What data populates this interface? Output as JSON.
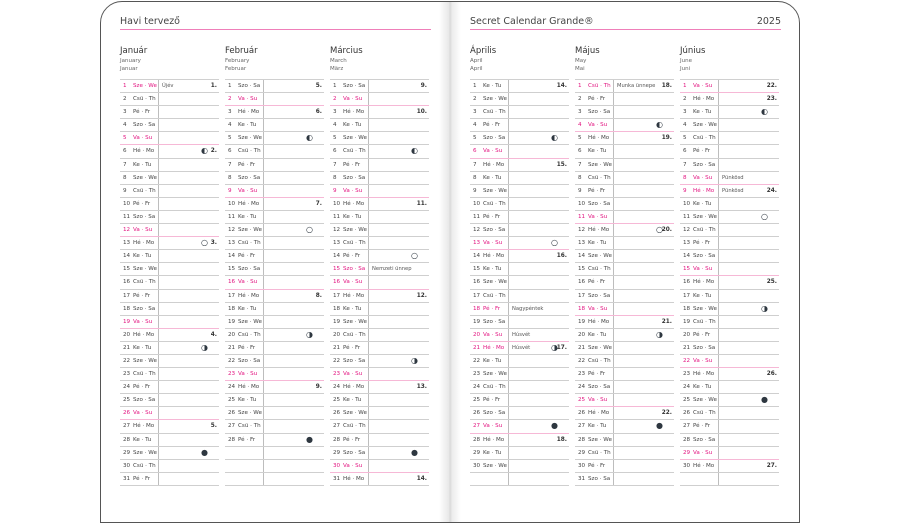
{
  "left_header": "Havi tervező",
  "right_header": "Secret Calendar Grande®",
  "year": "2025",
  "colors": {
    "accent": "#e2127f",
    "rule": "#ef7fb9"
  },
  "moon_glyphs": {
    "first-quarter": "◐",
    "full": "○",
    "last-quarter": "◑",
    "new": "●"
  },
  "months": [
    {
      "name": "Január",
      "en": "January",
      "de": "Januar",
      "days": [
        [
          "1",
          "Sze · We"
        ],
        [
          "2",
          "Csü · Th"
        ],
        [
          "3",
          "Pé · Fr"
        ],
        [
          "4",
          "Szo · Sa"
        ],
        [
          "5",
          "Va · Su"
        ],
        [
          "6",
          "Hé · Mo"
        ],
        [
          "7",
          "Ke · Tu"
        ],
        [
          "8",
          "Sze · We"
        ],
        [
          "9",
          "Csü · Th"
        ],
        [
          "10",
          "Pé · Fr"
        ],
        [
          "11",
          "Szo · Sa"
        ],
        [
          "12",
          "Va · Su"
        ],
        [
          "13",
          "Hé · Mo"
        ],
        [
          "14",
          "Ke · Tu"
        ],
        [
          "15",
          "Sze · We"
        ],
        [
          "16",
          "Csü · Th"
        ],
        [
          "17",
          "Pé · Fr"
        ],
        [
          "18",
          "Szo · Sa"
        ],
        [
          "19",
          "Va · Su"
        ],
        [
          "20",
          "Hé · Mo"
        ],
        [
          "21",
          "Ke · Tu"
        ],
        [
          "22",
          "Sze · We"
        ],
        [
          "23",
          "Csü · Th"
        ],
        [
          "24",
          "Pé · Fr"
        ],
        [
          "25",
          "Szo · Sa"
        ],
        [
          "26",
          "Va · Su"
        ],
        [
          "27",
          "Hé · Mo"
        ],
        [
          "28",
          "Ke · Tu"
        ],
        [
          "29",
          "Sze · We"
        ],
        [
          "30",
          "Csü · Th"
        ],
        [
          "31",
          "Pé · Fr"
        ]
      ],
      "red": [
        "1",
        "5",
        "12",
        "19",
        "26"
      ],
      "notes": {
        "1": "Újév"
      },
      "weeks": {
        "1": "1.",
        "6": "2.",
        "13": "3.",
        "20": "4.",
        "27": "5."
      },
      "moons": {
        "6": "first-quarter",
        "13": "full",
        "21": "last-quarter",
        "29": "new"
      }
    },
    {
      "name": "Február",
      "en": "February",
      "de": "Februar",
      "days": [
        [
          "1",
          "Szo · Sa"
        ],
        [
          "2",
          "Va · Su"
        ],
        [
          "3",
          "Hé · Mo"
        ],
        [
          "4",
          "Ke · Tu"
        ],
        [
          "5",
          "Sze · We"
        ],
        [
          "6",
          "Csü · Th"
        ],
        [
          "7",
          "Pé · Fr"
        ],
        [
          "8",
          "Szo · Sa"
        ],
        [
          "9",
          "Va · Su"
        ],
        [
          "10",
          "Hé · Mo"
        ],
        [
          "11",
          "Ke · Tu"
        ],
        [
          "12",
          "Sze · We"
        ],
        [
          "13",
          "Csü · Th"
        ],
        [
          "14",
          "Pé · Fr"
        ],
        [
          "15",
          "Szo · Sa"
        ],
        [
          "16",
          "Va · Su"
        ],
        [
          "17",
          "Hé · Mo"
        ],
        [
          "18",
          "Ke · Tu"
        ],
        [
          "19",
          "Sze · We"
        ],
        [
          "20",
          "Csü · Th"
        ],
        [
          "21",
          "Pé · Fr"
        ],
        [
          "22",
          "Szo · Sa"
        ],
        [
          "23",
          "Va · Su"
        ],
        [
          "24",
          "Hé · Mo"
        ],
        [
          "25",
          "Ke · Tu"
        ],
        [
          "26",
          "Sze · We"
        ],
        [
          "27",
          "Csü · Th"
        ],
        [
          "28",
          "Pé · Fr"
        ]
      ],
      "red": [
        "2",
        "9",
        "16",
        "23"
      ],
      "notes": {},
      "weeks": {
        "1": "5.",
        "3": "6.",
        "10": "7.",
        "17": "8.",
        "24": "9."
      },
      "moons": {
        "5": "first-quarter",
        "12": "full",
        "20": "last-quarter",
        "28": "new"
      }
    },
    {
      "name": "Március",
      "en": "March",
      "de": "März",
      "days": [
        [
          "1",
          "Szo · Sa"
        ],
        [
          "2",
          "Va · Su"
        ],
        [
          "3",
          "Hé · Mo"
        ],
        [
          "4",
          "Ke · Tu"
        ],
        [
          "5",
          "Sze · We"
        ],
        [
          "6",
          "Csü · Th"
        ],
        [
          "7",
          "Pé · Fr"
        ],
        [
          "8",
          "Szo · Sa"
        ],
        [
          "9",
          "Va · Su"
        ],
        [
          "10",
          "Hé · Mo"
        ],
        [
          "11",
          "Ke · Tu"
        ],
        [
          "12",
          "Sze · We"
        ],
        [
          "13",
          "Csü · Th"
        ],
        [
          "14",
          "Pé · Fr"
        ],
        [
          "15",
          "Szo · Sa"
        ],
        [
          "16",
          "Va · Su"
        ],
        [
          "17",
          "Hé · Mo"
        ],
        [
          "18",
          "Ke · Tu"
        ],
        [
          "19",
          "Sze · We"
        ],
        [
          "20",
          "Csü · Th"
        ],
        [
          "21",
          "Pé · Fr"
        ],
        [
          "22",
          "Szo · Sa"
        ],
        [
          "23",
          "Va · Su"
        ],
        [
          "24",
          "Hé · Mo"
        ],
        [
          "25",
          "Ke · Tu"
        ],
        [
          "26",
          "Sze · We"
        ],
        [
          "27",
          "Csü · Th"
        ],
        [
          "28",
          "Pé · Fr"
        ],
        [
          "29",
          "Szo · Sa"
        ],
        [
          "30",
          "Va · Su"
        ],
        [
          "31",
          "Hé · Mo"
        ]
      ],
      "red": [
        "2",
        "9",
        "15",
        "16",
        "23",
        "30"
      ],
      "notes": {
        "15": "Nemzeti ünnep"
      },
      "weeks": {
        "1": "9.",
        "3": "10.",
        "10": "11.",
        "17": "12.",
        "24": "13.",
        "31": "14."
      },
      "moons": {
        "6": "first-quarter",
        "14": "full",
        "22": "last-quarter",
        "29": "new"
      }
    },
    {
      "name": "Április",
      "en": "April",
      "de": "April",
      "days": [
        [
          "1",
          "Ke · Tu"
        ],
        [
          "2",
          "Sze · We"
        ],
        [
          "3",
          "Csü · Th"
        ],
        [
          "4",
          "Pé · Fr"
        ],
        [
          "5",
          "Szo · Sa"
        ],
        [
          "6",
          "Va · Su"
        ],
        [
          "7",
          "Hé · Mo"
        ],
        [
          "8",
          "Ke · Tu"
        ],
        [
          "9",
          "Sze · We"
        ],
        [
          "10",
          "Csü · Th"
        ],
        [
          "11",
          "Pé · Fr"
        ],
        [
          "12",
          "Szo · Sa"
        ],
        [
          "13",
          "Va · Su"
        ],
        [
          "14",
          "Hé · Mo"
        ],
        [
          "15",
          "Ke · Tu"
        ],
        [
          "16",
          "Sze · We"
        ],
        [
          "17",
          "Csü · Th"
        ],
        [
          "18",
          "Pé · Fr"
        ],
        [
          "19",
          "Szo · Sa"
        ],
        [
          "20",
          "Va · Su"
        ],
        [
          "21",
          "Hé · Mo"
        ],
        [
          "22",
          "Ke · Tu"
        ],
        [
          "23",
          "Sze · We"
        ],
        [
          "24",
          "Csü · Th"
        ],
        [
          "25",
          "Pé · Fr"
        ],
        [
          "26",
          "Szo · Sa"
        ],
        [
          "27",
          "Va · Su"
        ],
        [
          "28",
          "Hé · Mo"
        ],
        [
          "29",
          "Ke · Tu"
        ],
        [
          "30",
          "Sze · We"
        ]
      ],
      "red": [
        "6",
        "13",
        "18",
        "20",
        "21",
        "27"
      ],
      "notes": {
        "18": "Nagypéntek",
        "20": "Húsvét",
        "21": "Húsvét"
      },
      "weeks": {
        "1": "14.",
        "7": "15.",
        "14": "16.",
        "21": "17.",
        "28": "18."
      },
      "moons": {
        "5": "first-quarter",
        "13": "full",
        "21": "last-quarter",
        "27": "new"
      }
    },
    {
      "name": "Május",
      "en": "May",
      "de": "Mai",
      "days": [
        [
          "1",
          "Csü · Th"
        ],
        [
          "2",
          "Pé · Fr"
        ],
        [
          "3",
          "Szo · Sa"
        ],
        [
          "4",
          "Va · Su"
        ],
        [
          "5",
          "Hé · Mo"
        ],
        [
          "6",
          "Ke · Tu"
        ],
        [
          "7",
          "Sze · We"
        ],
        [
          "8",
          "Csü · Th"
        ],
        [
          "9",
          "Pé · Fr"
        ],
        [
          "10",
          "Szo · Sa"
        ],
        [
          "11",
          "Va · Su"
        ],
        [
          "12",
          "Hé · Mo"
        ],
        [
          "13",
          "Ke · Tu"
        ],
        [
          "14",
          "Sze · We"
        ],
        [
          "15",
          "Csü · Th"
        ],
        [
          "16",
          "Pé · Fr"
        ],
        [
          "17",
          "Szo · Sa"
        ],
        [
          "18",
          "Va · Su"
        ],
        [
          "19",
          "Hé · Mo"
        ],
        [
          "20",
          "Ke · Tu"
        ],
        [
          "21",
          "Sze · We"
        ],
        [
          "22",
          "Csü · Th"
        ],
        [
          "23",
          "Pé · Fr"
        ],
        [
          "24",
          "Szo · Sa"
        ],
        [
          "25",
          "Va · Su"
        ],
        [
          "26",
          "Hé · Mo"
        ],
        [
          "27",
          "Ke · Tu"
        ],
        [
          "28",
          "Sze · We"
        ],
        [
          "29",
          "Csü · Th"
        ],
        [
          "30",
          "Pé · Fr"
        ],
        [
          "31",
          "Szo · Sa"
        ]
      ],
      "red": [
        "1",
        "4",
        "11",
        "18",
        "25"
      ],
      "notes": {
        "1": "Munka ünnepe"
      },
      "weeks": {
        "1": "18.",
        "5": "19.",
        "12": "20.",
        "19": "21.",
        "26": "22."
      },
      "moons": {
        "4": "first-quarter",
        "12": "full",
        "20": "last-quarter",
        "27": "new"
      }
    },
    {
      "name": "Június",
      "en": "June",
      "de": "Juni",
      "days": [
        [
          "1",
          "Va · Su"
        ],
        [
          "2",
          "Hé · Mo"
        ],
        [
          "3",
          "Ke · Tu"
        ],
        [
          "4",
          "Sze · We"
        ],
        [
          "5",
          "Csü · Th"
        ],
        [
          "6",
          "Pé · Fr"
        ],
        [
          "7",
          "Szo · Sa"
        ],
        [
          "8",
          "Va · Su"
        ],
        [
          "9",
          "Hé · Mo"
        ],
        [
          "10",
          "Ke · Tu"
        ],
        [
          "11",
          "Sze · We"
        ],
        [
          "12",
          "Csü · Th"
        ],
        [
          "13",
          "Pé · Fr"
        ],
        [
          "14",
          "Szo · Sa"
        ],
        [
          "15",
          "Va · Su"
        ],
        [
          "16",
          "Hé · Mo"
        ],
        [
          "17",
          "Ke · Tu"
        ],
        [
          "18",
          "Sze · We"
        ],
        [
          "19",
          "Csü · Th"
        ],
        [
          "20",
          "Pé · Fr"
        ],
        [
          "21",
          "Szo · Sa"
        ],
        [
          "22",
          "Va · Su"
        ],
        [
          "23",
          "Hé · Mo"
        ],
        [
          "24",
          "Ke · Tu"
        ],
        [
          "25",
          "Sze · We"
        ],
        [
          "26",
          "Csü · Th"
        ],
        [
          "27",
          "Pé · Fr"
        ],
        [
          "28",
          "Szo · Sa"
        ],
        [
          "29",
          "Va · Su"
        ],
        [
          "30",
          "Hé · Mo"
        ]
      ],
      "red": [
        "1",
        "8",
        "9",
        "15",
        "22",
        "29"
      ],
      "notes": {
        "8": "Pünkösd",
        "9": "Pünkösd"
      },
      "weeks": {
        "1": "22.",
        "2": "23.",
        "9": "24.",
        "16": "25.",
        "23": "26.",
        "30": "27."
      },
      "moons": {
        "3": "first-quarter",
        "11": "full",
        "18": "last-quarter",
        "25": "new"
      }
    }
  ]
}
